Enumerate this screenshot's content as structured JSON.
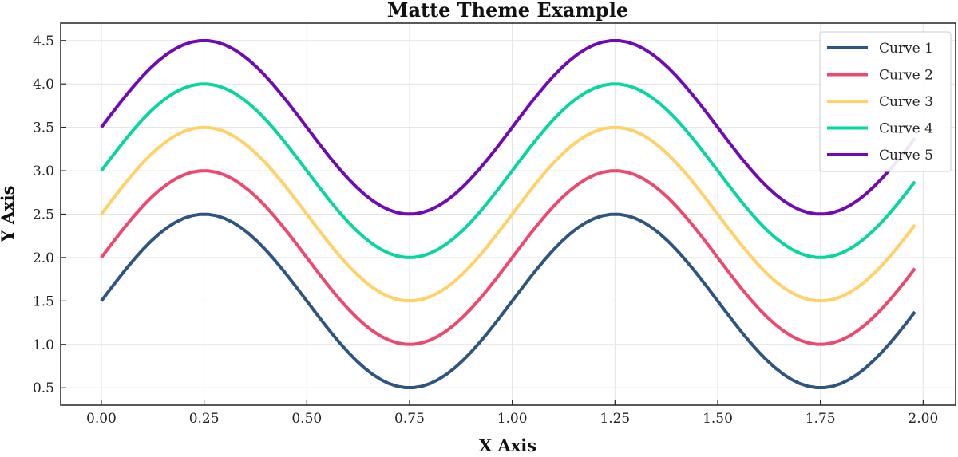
{
  "chart_data": {
    "type": "line",
    "title": "Matte Theme Example",
    "xlabel": "X Axis",
    "ylabel": "Y Axis",
    "xlim": [
      -0.099,
      2.079
    ],
    "ylim": [
      0.3,
      4.7
    ],
    "xticks": [
      "0.00",
      "0.25",
      "0.50",
      "0.75",
      "1.00",
      "1.25",
      "1.50",
      "1.75",
      "2.00"
    ],
    "yticks": [
      "0.5",
      "1.0",
      "1.5",
      "2.0",
      "2.5",
      "3.0",
      "3.5",
      "4.0",
      "4.5"
    ],
    "grid": true,
    "legend_position": "top-right",
    "x_start": 0,
    "x_end": 1.98,
    "x_step": 0.02,
    "series": [
      {
        "name": "Curve 1",
        "formula": "sin(2*pi*x) + 1.5",
        "color": "#2d5580"
      },
      {
        "name": "Curve 2",
        "formula": "sin(2*pi*x) + 2.0",
        "color": "#ef476f"
      },
      {
        "name": "Curve 3",
        "formula": "sin(2*pi*x) + 2.5",
        "color": "#ffd166"
      },
      {
        "name": "Curve 4",
        "formula": "sin(2*pi*x) + 3.0",
        "color": "#06d6a0"
      },
      {
        "name": "Curve 5",
        "formula": "sin(2*pi*x) + 3.5",
        "color": "#7209b7"
      }
    ]
  }
}
